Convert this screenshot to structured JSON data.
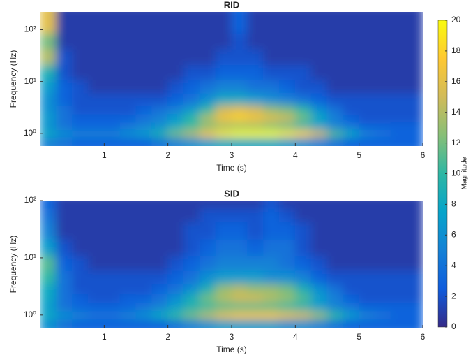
{
  "chart_data": [
    {
      "type": "heatmap",
      "title": "RID",
      "x_label": "Time (s)",
      "y_label": "Frequency (Hz)",
      "log_y": true,
      "xlim": [
        0,
        6
      ],
      "xticks": [
        1,
        2,
        3,
        4,
        5,
        6
      ],
      "ylim": [
        0.57,
        220
      ],
      "yticks": [
        {
          "value": 1,
          "label": "10⁰"
        },
        {
          "value": 10,
          "label": "10¹"
        },
        {
          "value": 100,
          "label": "10²"
        }
      ],
      "x": [
        0.125,
        0.375,
        0.625,
        0.875,
        1.125,
        1.375,
        1.625,
        1.875,
        2.125,
        2.375,
        2.625,
        2.875,
        3.125,
        3.375,
        3.625,
        3.875,
        4.125,
        4.375,
        4.625,
        4.875,
        5.125,
        5.375,
        5.625,
        5.875
      ],
      "y": [
        0.7,
        1.0,
        1.4,
        2.0,
        2.8,
        4.5,
        8,
        15,
        30,
        60,
        120
      ],
      "values": [
        [
          5,
          4,
          3,
          3,
          3,
          3,
          3,
          4,
          5,
          6,
          7,
          8,
          8,
          8,
          8,
          7,
          6,
          5,
          4,
          3,
          3,
          3,
          3,
          3
        ],
        [
          8,
          6,
          5,
          5,
          5,
          6,
          7,
          9,
          12,
          14,
          17,
          19,
          20,
          20,
          20,
          19,
          18,
          15,
          11,
          8,
          5,
          4,
          3,
          3
        ],
        [
          6,
          4,
          3,
          3,
          3,
          4,
          5,
          6,
          8,
          10,
          12,
          13,
          13,
          13,
          12,
          11,
          9,
          7,
          5,
          4,
          3,
          3,
          3,
          3
        ],
        [
          7,
          4,
          3,
          3,
          3,
          3,
          4,
          5,
          7,
          10,
          14,
          17,
          18,
          17,
          16,
          15,
          12,
          8,
          5,
          3,
          2,
          2,
          2,
          2
        ],
        [
          6,
          4,
          2,
          2,
          2,
          2,
          3,
          4,
          5,
          7,
          10,
          15,
          16,
          15,
          13,
          12,
          10,
          6,
          4,
          2,
          2,
          2,
          2,
          2
        ],
        [
          6,
          3,
          2,
          2,
          2,
          2,
          2,
          2,
          3,
          4,
          6,
          8,
          8,
          7,
          6,
          5,
          4,
          3,
          2,
          2,
          2,
          2,
          2,
          2
        ],
        [
          7,
          3,
          2,
          1,
          1,
          1,
          1,
          1,
          2,
          3,
          4,
          5,
          5,
          4,
          4,
          3,
          2,
          2,
          1,
          1,
          1,
          1,
          1,
          1
        ],
        [
          9,
          2,
          1,
          1,
          1,
          1,
          1,
          1,
          1,
          2,
          2,
          3,
          3,
          3,
          2,
          2,
          2,
          1,
          1,
          1,
          1,
          1,
          1,
          1
        ],
        [
          14,
          2,
          1,
          1,
          1,
          1,
          1,
          1,
          1,
          1,
          1,
          2,
          2,
          2,
          1,
          1,
          1,
          1,
          1,
          1,
          1,
          1,
          1,
          1
        ],
        [
          12,
          1,
          1,
          1,
          1,
          1,
          1,
          1,
          1,
          1,
          1,
          1,
          2,
          1,
          1,
          1,
          1,
          1,
          1,
          1,
          1,
          1,
          1,
          1
        ],
        [
          16,
          1,
          1,
          1,
          1,
          1,
          1,
          1,
          1,
          1,
          1,
          1,
          3,
          1,
          1,
          1,
          1,
          1,
          1,
          1,
          1,
          1,
          1,
          1
        ]
      ]
    },
    {
      "type": "heatmap",
      "title": "SID",
      "x_label": "Time (s)",
      "y_label": "Frequency (Hz)",
      "log_y": true,
      "xlim": [
        0,
        6
      ],
      "xticks": [
        1,
        2,
        3,
        4,
        5,
        6
      ],
      "ylim": [
        0.6,
        100
      ],
      "yticks": [
        {
          "value": 1,
          "label": "10⁰"
        },
        {
          "value": 10,
          "label": "10¹"
        },
        {
          "value": 100,
          "label": "10²"
        }
      ],
      "x": [
        0.125,
        0.375,
        0.625,
        0.875,
        1.125,
        1.375,
        1.625,
        1.875,
        2.125,
        2.375,
        2.625,
        2.875,
        3.125,
        3.375,
        3.625,
        3.875,
        4.125,
        4.375,
        4.625,
        4.875,
        5.125,
        5.375,
        5.625,
        5.875
      ],
      "y": [
        0.7,
        1.0,
        1.4,
        2.0,
        2.8,
        4.5,
        8,
        15,
        30,
        60,
        90
      ],
      "values": [
        [
          6,
          4,
          3,
          3,
          3,
          3,
          3,
          3,
          4,
          5,
          6,
          7,
          7,
          7,
          7,
          6,
          6,
          5,
          4,
          3,
          3,
          3,
          3,
          3
        ],
        [
          8,
          6,
          5,
          4,
          4,
          5,
          6,
          8,
          10,
          12,
          14,
          16,
          17,
          17,
          17,
          16,
          15,
          13,
          10,
          7,
          5,
          4,
          3,
          3
        ],
        [
          7,
          4,
          3,
          3,
          3,
          3,
          4,
          5,
          7,
          9,
          10,
          11,
          11,
          11,
          11,
          10,
          9,
          7,
          5,
          4,
          3,
          3,
          3,
          3
        ],
        [
          8,
          4,
          3,
          2,
          2,
          3,
          3,
          4,
          6,
          9,
          12,
          14,
          15,
          15,
          14,
          13,
          11,
          7,
          5,
          3,
          2,
          2,
          2,
          2
        ],
        [
          8,
          4,
          2,
          2,
          2,
          2,
          2,
          3,
          4,
          6,
          9,
          13,
          14,
          13,
          13,
          12,
          9,
          6,
          4,
          2,
          2,
          2,
          2,
          2
        ],
        [
          10,
          4,
          2,
          2,
          2,
          2,
          2,
          2,
          3,
          4,
          6,
          7,
          7,
          7,
          6,
          6,
          5,
          3,
          2,
          2,
          2,
          2,
          2,
          2
        ],
        [
          11,
          3,
          2,
          1,
          1,
          1,
          1,
          1,
          2,
          3,
          4,
          5,
          5,
          5,
          5,
          4,
          3,
          2,
          1,
          1,
          1,
          1,
          1,
          1
        ],
        [
          7,
          2,
          1,
          1,
          1,
          1,
          1,
          1,
          1,
          2,
          3,
          4,
          4,
          3,
          4,
          4,
          2,
          1,
          1,
          1,
          1,
          1,
          1,
          1
        ],
        [
          5,
          1,
          1,
          1,
          1,
          1,
          1,
          1,
          1,
          2,
          2,
          3,
          3,
          2,
          3,
          3,
          2,
          1,
          1,
          1,
          1,
          1,
          1,
          1
        ],
        [
          4,
          1,
          1,
          1,
          1,
          1,
          1,
          1,
          1,
          1,
          2,
          2,
          2,
          2,
          3,
          2,
          1,
          1,
          1,
          1,
          1,
          1,
          1,
          1
        ],
        [
          3,
          1,
          1,
          1,
          1,
          1,
          1,
          1,
          1,
          1,
          1,
          1,
          1,
          1,
          2,
          1,
          1,
          1,
          1,
          1,
          1,
          1,
          1,
          1
        ]
      ]
    }
  ],
  "colorbar": {
    "label": "Magnitude",
    "lim": [
      0,
      20
    ],
    "ticks": [
      0,
      2,
      4,
      6,
      8,
      10,
      12,
      14,
      16,
      18,
      20
    ],
    "colors": [
      "#352a87",
      "#0f5cdd",
      "#1481d6",
      "#06a4ca",
      "#2eb7a4",
      "#87bf77",
      "#d1bb59",
      "#fec832",
      "#f9fb0e"
    ]
  }
}
